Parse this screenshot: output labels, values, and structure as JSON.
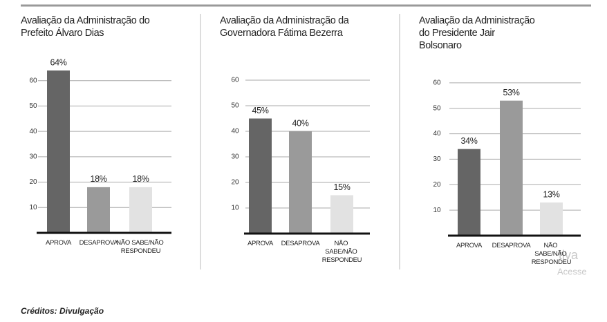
{
  "chart_data": [
    {
      "type": "bar",
      "title": "Avaliação da Administração do Prefeito Álvaro Dias",
      "categories": [
        "APROVA",
        "DESAPROVA",
        "NÃO SABE/NÃO RESPONDEU"
      ],
      "values": [
        64,
        18,
        18
      ],
      "value_labels": [
        "64%",
        "18%",
        "18%"
      ],
      "colors": [
        "#656565",
        "#9a9a9a",
        "#e2e2e2"
      ],
      "ylim": [
        0,
        70
      ],
      "yticks": [
        10,
        20,
        30,
        40,
        50,
        60
      ],
      "grid": true
    },
    {
      "type": "bar",
      "title": "Avaliação da Administração da Governadora Fátima Bezerra",
      "categories": [
        "APROVA",
        "DESAPROVA",
        "NÃO SABE/NÃO RESPONDEU"
      ],
      "values": [
        45,
        40,
        15
      ],
      "value_labels": [
        "45%",
        "40%",
        "15%"
      ],
      "colors": [
        "#656565",
        "#9a9a9a",
        "#e2e2e2"
      ],
      "ylim": [
        0,
        70
      ],
      "yticks": [
        10,
        20,
        30,
        40,
        50,
        60
      ],
      "grid": true
    },
    {
      "type": "bar",
      "title": "Avaliação da Administração do Presidente Jair Bolsonaro",
      "categories": [
        "APROVA",
        "DESAPROVA",
        "NÃO SABE/NÃO RESPONDEU"
      ],
      "values": [
        34,
        53,
        13
      ],
      "value_labels": [
        "34%",
        "53%",
        "13%"
      ],
      "colors": [
        "#656565",
        "#9a9a9a",
        "#e2e2e2"
      ],
      "ylim": [
        0,
        70
      ],
      "yticks": [
        10,
        20,
        30,
        40,
        50,
        60
      ],
      "grid": true
    }
  ],
  "credits": "Créditos: Divulgação",
  "watermark": [
    "tiva",
    "Acesse"
  ]
}
